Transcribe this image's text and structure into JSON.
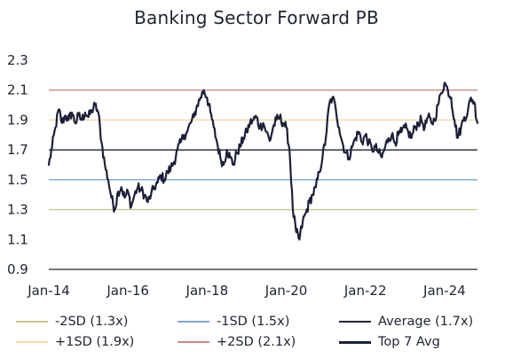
{
  "colors": {
    "text": "#1f2433",
    "minus2sd": "#c9c98a",
    "minus1sd": "#7da7d9",
    "average": "#1f2433",
    "plus1sd": "#f3d7a8",
    "plus2sd": "#c78a8a",
    "top7": "#1c2038"
  },
  "chart_data": {
    "type": "line",
    "title": "Banking Sector Forward PB",
    "ylim": [
      0.9,
      2.3
    ],
    "yticks": [
      "2.3",
      "2.1",
      "1.9",
      "1.7",
      "1.5",
      "1.3",
      "1.1",
      "0.9"
    ],
    "xticks": [
      "Jan-14",
      "Jan-16",
      "Jan-18",
      "Jan-20",
      "Jan-22",
      "Jan-24"
    ],
    "x_start": "2014-01",
    "x_end": "2024-11",
    "grid": false,
    "legend_position": "bottom",
    "reference_lines": [
      {
        "name": "-2SD (1.3x)",
        "value": 1.3,
        "color": "#c9c98a"
      },
      {
        "name": "-1SD (1.5x)",
        "value": 1.5,
        "color": "#7da7d9"
      },
      {
        "name": "Average (1.7x)",
        "value": 1.7,
        "color": "#1f2433"
      },
      {
        "name": "+1SD (1.9x)",
        "value": 1.9,
        "color": "#f3d7a8"
      },
      {
        "name": "+2SD (2.1x)",
        "value": 2.1,
        "color": "#c78a8a"
      }
    ],
    "series": [
      {
        "name": "Top 7 Avg",
        "color": "#1c2038",
        "points": [
          [
            "2014-01",
            1.6
          ],
          [
            "2014-02",
            1.72
          ],
          [
            "2014-03",
            1.85
          ],
          [
            "2014-04",
            1.97
          ],
          [
            "2014-05",
            1.88
          ],
          [
            "2014-06",
            1.93
          ],
          [
            "2014-07",
            1.9
          ],
          [
            "2014-08",
            1.95
          ],
          [
            "2014-09",
            1.88
          ],
          [
            "2014-10",
            1.93
          ],
          [
            "2014-11",
            1.9
          ],
          [
            "2014-12",
            1.95
          ],
          [
            "2015-01",
            1.92
          ],
          [
            "2015-02",
            1.96
          ],
          [
            "2015-03",
            2.0
          ],
          [
            "2015-04",
            1.95
          ],
          [
            "2015-05",
            1.75
          ],
          [
            "2015-06",
            1.6
          ],
          [
            "2015-07",
            1.5
          ],
          [
            "2015-08",
            1.38
          ],
          [
            "2015-09",
            1.3
          ],
          [
            "2015-10",
            1.42
          ],
          [
            "2015-11",
            1.45
          ],
          [
            "2015-12",
            1.38
          ],
          [
            "2016-01",
            1.42
          ],
          [
            "2016-02",
            1.32
          ],
          [
            "2016-03",
            1.4
          ],
          [
            "2016-04",
            1.45
          ],
          [
            "2016-05",
            1.43
          ],
          [
            "2016-06",
            1.4
          ],
          [
            "2016-07",
            1.35
          ],
          [
            "2016-08",
            1.4
          ],
          [
            "2016-09",
            1.45
          ],
          [
            "2016-10",
            1.48
          ],
          [
            "2016-11",
            1.53
          ],
          [
            "2016-12",
            1.5
          ],
          [
            "2017-01",
            1.55
          ],
          [
            "2017-02",
            1.58
          ],
          [
            "2017-03",
            1.62
          ],
          [
            "2017-04",
            1.7
          ],
          [
            "2017-05",
            1.75
          ],
          [
            "2017-06",
            1.8
          ],
          [
            "2017-07",
            1.82
          ],
          [
            "2017-08",
            1.88
          ],
          [
            "2017-09",
            1.92
          ],
          [
            "2017-10",
            2.0
          ],
          [
            "2017-11",
            2.05
          ],
          [
            "2017-12",
            2.1
          ],
          [
            "2018-01",
            2.05
          ],
          [
            "2018-02",
            1.95
          ],
          [
            "2018-03",
            1.85
          ],
          [
            "2018-04",
            1.75
          ],
          [
            "2018-05",
            1.65
          ],
          [
            "2018-06",
            1.6
          ],
          [
            "2018-07",
            1.7
          ],
          [
            "2018-08",
            1.65
          ],
          [
            "2018-09",
            1.6
          ],
          [
            "2018-10",
            1.68
          ],
          [
            "2018-11",
            1.72
          ],
          [
            "2018-12",
            1.78
          ],
          [
            "2019-01",
            1.82
          ],
          [
            "2019-02",
            1.88
          ],
          [
            "2019-03",
            1.9
          ],
          [
            "2019-04",
            1.92
          ],
          [
            "2019-05",
            1.85
          ],
          [
            "2019-06",
            1.88
          ],
          [
            "2019-07",
            1.82
          ],
          [
            "2019-08",
            1.76
          ],
          [
            "2019-09",
            1.85
          ],
          [
            "2019-10",
            1.9
          ],
          [
            "2019-11",
            1.92
          ],
          [
            "2019-12",
            1.88
          ],
          [
            "2020-01",
            1.85
          ],
          [
            "2020-02",
            1.7
          ],
          [
            "2020-03",
            1.3
          ],
          [
            "2020-04",
            1.15
          ],
          [
            "2020-05",
            1.1
          ],
          [
            "2020-06",
            1.22
          ],
          [
            "2020-07",
            1.28
          ],
          [
            "2020-08",
            1.35
          ],
          [
            "2020-09",
            1.4
          ],
          [
            "2020-10",
            1.45
          ],
          [
            "2020-11",
            1.55
          ],
          [
            "2020-12",
            1.65
          ],
          [
            "2021-01",
            1.78
          ],
          [
            "2021-02",
            2.0
          ],
          [
            "2021-03",
            2.05
          ],
          [
            "2021-04",
            1.98
          ],
          [
            "2021-05",
            1.85
          ],
          [
            "2021-06",
            1.75
          ],
          [
            "2021-07",
            1.68
          ],
          [
            "2021-08",
            1.65
          ],
          [
            "2021-09",
            1.72
          ],
          [
            "2021-10",
            1.78
          ],
          [
            "2021-11",
            1.82
          ],
          [
            "2021-12",
            1.75
          ],
          [
            "2022-01",
            1.8
          ],
          [
            "2022-02",
            1.75
          ],
          [
            "2022-03",
            1.7
          ],
          [
            "2022-04",
            1.72
          ],
          [
            "2022-05",
            1.68
          ],
          [
            "2022-06",
            1.65
          ],
          [
            "2022-07",
            1.72
          ],
          [
            "2022-08",
            1.78
          ],
          [
            "2022-09",
            1.8
          ],
          [
            "2022-10",
            1.75
          ],
          [
            "2022-11",
            1.8
          ],
          [
            "2022-12",
            1.82
          ],
          [
            "2023-01",
            1.85
          ],
          [
            "2023-02",
            1.82
          ],
          [
            "2023-03",
            1.78
          ],
          [
            "2023-04",
            1.85
          ],
          [
            "2023-05",
            1.88
          ],
          [
            "2023-06",
            1.9
          ],
          [
            "2023-07",
            1.85
          ],
          [
            "2023-08",
            1.92
          ],
          [
            "2023-09",
            1.88
          ],
          [
            "2023-10",
            1.9
          ],
          [
            "2023-11",
            2.0
          ],
          [
            "2023-12",
            2.08
          ],
          [
            "2024-01",
            2.15
          ],
          [
            "2024-02",
            2.1
          ],
          [
            "2024-03",
            2.05
          ],
          [
            "2024-04",
            1.9
          ],
          [
            "2024-05",
            1.78
          ],
          [
            "2024-06",
            1.85
          ],
          [
            "2024-07",
            1.92
          ],
          [
            "2024-08",
            1.95
          ],
          [
            "2024-09",
            2.05
          ],
          [
            "2024-10",
            2.02
          ],
          [
            "2024-11",
            1.88
          ]
        ]
      }
    ]
  },
  "legend": {
    "items": [
      {
        "label": "-2SD (1.3x)",
        "kind": "thin",
        "color": "#c9c98a"
      },
      {
        "label": "-1SD (1.5x)",
        "kind": "thin",
        "color": "#7da7d9"
      },
      {
        "label": "Average (1.7x)",
        "kind": "thin",
        "color": "#1f2433"
      },
      {
        "label": "+1SD (1.9x)",
        "kind": "thin",
        "color": "#f3d7a8"
      },
      {
        "label": "+2SD (2.1x)",
        "kind": "thin",
        "color": "#c78a8a"
      },
      {
        "label": "Top 7 Avg",
        "kind": "thick",
        "color": "#1c2038"
      }
    ]
  }
}
